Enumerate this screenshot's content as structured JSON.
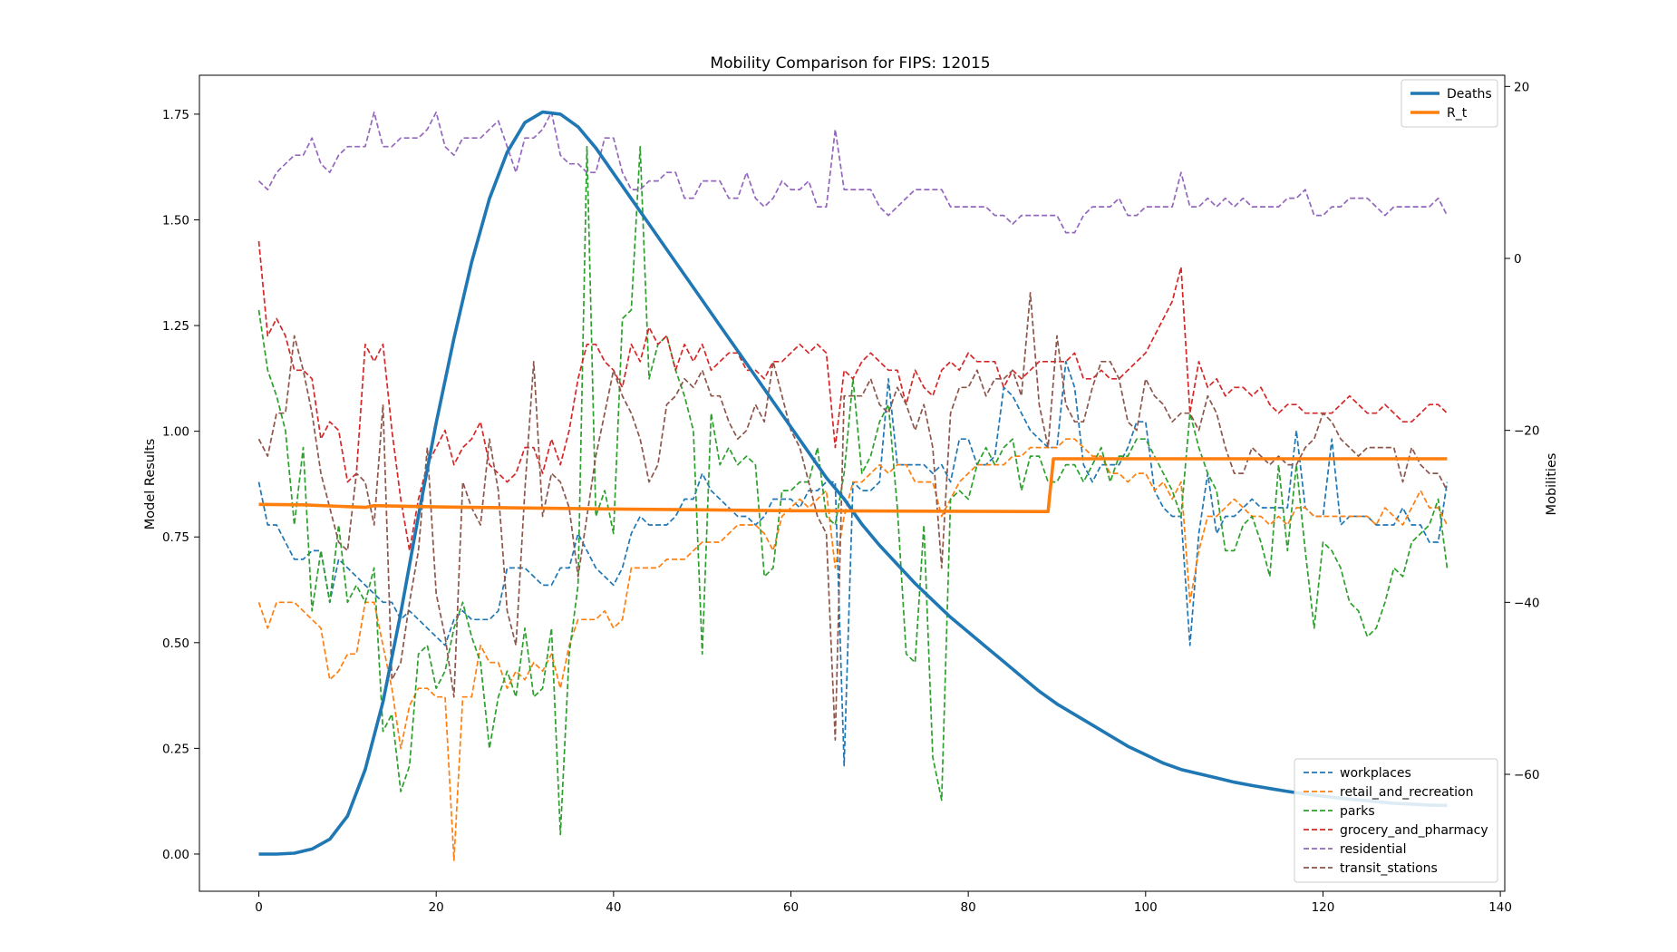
{
  "chart_data": {
    "type": "line",
    "title": "Mobility Comparison for FIPS: 12015",
    "xlabel": "",
    "xlim": [
      -6.7,
      140.5
    ],
    "x_ticks": [
      0,
      20,
      40,
      60,
      80,
      100,
      120,
      140
    ],
    "left_axis": {
      "label": "Model Results",
      "ylim": [
        -0.088,
        1.842
      ],
      "ticks": [
        "0.00",
        "0.25",
        "0.50",
        "0.75",
        "1.00",
        "1.25",
        "1.50",
        "1.75"
      ]
    },
    "right_axis": {
      "label": "Mobilities",
      "ylim": [
        -73.6,
        21.3
      ],
      "ticks": [
        "−60",
        "−40",
        "−20",
        "0",
        "20"
      ]
    },
    "legend_left_axis": {
      "placement": "upper-right",
      "entries": [
        "Deaths",
        "R_t"
      ]
    },
    "legend_right_axis": {
      "placement": "lower-right",
      "entries": [
        "workplaces",
        "retail_and_recreation",
        "parks",
        "grocery_and_pharmacy",
        "residential",
        "transit_stations"
      ]
    },
    "model_series": [
      {
        "name": "Deaths",
        "axis": "left",
        "color": "#1f77b4",
        "style": "solid",
        "points": [
          [
            0,
            0
          ],
          [
            2,
            0
          ],
          [
            4,
            0.002
          ],
          [
            6,
            0.012
          ],
          [
            8,
            0.035
          ],
          [
            10,
            0.09
          ],
          [
            12,
            0.2
          ],
          [
            14,
            0.36
          ],
          [
            16,
            0.57
          ],
          [
            18,
            0.8
          ],
          [
            20,
            1.02
          ],
          [
            22,
            1.22
          ],
          [
            24,
            1.4
          ],
          [
            26,
            1.55
          ],
          [
            28,
            1.66
          ],
          [
            30,
            1.73
          ],
          [
            32,
            1.755
          ],
          [
            34,
            1.75
          ],
          [
            36,
            1.72
          ],
          [
            38,
            1.67
          ],
          [
            40,
            1.61
          ],
          [
            42,
            1.55
          ],
          [
            44,
            1.49
          ],
          [
            46,
            1.43
          ],
          [
            48,
            1.37
          ],
          [
            50,
            1.31
          ],
          [
            52,
            1.25
          ],
          [
            54,
            1.19
          ],
          [
            56,
            1.13
          ],
          [
            58,
            1.07
          ],
          [
            60,
            1.01
          ],
          [
            62,
            0.95
          ],
          [
            64,
            0.89
          ],
          [
            66,
            0.84
          ],
          [
            68,
            0.78
          ],
          [
            70,
            0.73
          ],
          [
            72,
            0.685
          ],
          [
            74,
            0.64
          ],
          [
            76,
            0.6
          ],
          [
            78,
            0.56
          ],
          [
            80,
            0.525
          ],
          [
            82,
            0.49
          ],
          [
            84,
            0.455
          ],
          [
            86,
            0.42
          ],
          [
            88,
            0.385
          ],
          [
            90,
            0.355
          ],
          [
            92,
            0.33
          ],
          [
            94,
            0.305
          ],
          [
            96,
            0.28
          ],
          [
            98,
            0.255
          ],
          [
            100,
            0.235
          ],
          [
            102,
            0.215
          ],
          [
            104,
            0.2
          ],
          [
            106,
            0.19
          ],
          [
            108,
            0.18
          ],
          [
            110,
            0.17
          ],
          [
            112,
            0.162
          ],
          [
            114,
            0.155
          ],
          [
            116,
            0.148
          ],
          [
            118,
            0.142
          ],
          [
            120,
            0.137
          ],
          [
            122,
            0.132
          ],
          [
            124,
            0.128
          ],
          [
            126,
            0.124
          ],
          [
            128,
            0.12
          ],
          [
            130,
            0.118
          ],
          [
            132,
            0.116
          ],
          [
            134,
            0.115
          ]
        ]
      },
      {
        "name": "R_t",
        "axis": "left",
        "color": "#ff7f0e",
        "style": "solid",
        "points": [
          [
            0,
            0.827
          ],
          [
            5,
            0.826
          ],
          [
            12,
            0.82
          ],
          [
            13,
            0.824
          ],
          [
            20,
            0.821
          ],
          [
            40,
            0.816
          ],
          [
            60,
            0.812
          ],
          [
            75,
            0.811
          ],
          [
            89,
            0.81
          ],
          [
            89.6,
            0.935
          ],
          [
            134,
            0.935
          ]
        ]
      }
    ],
    "mobility_series": [
      {
        "name": "workplaces",
        "axis": "right",
        "color": "#1f77b4",
        "style": "dashed",
        "values": [
          -26,
          -31,
          -31,
          -33,
          -35,
          -35,
          -34,
          -34,
          -40,
          -35,
          -36,
          -37,
          -38,
          -39,
          -40,
          -40,
          -42,
          -41,
          -42,
          -43,
          -44,
          -45,
          -42,
          -41,
          -42,
          -42,
          -42,
          -41,
          -36,
          -36,
          -36,
          -37,
          -38,
          -38,
          -36,
          -36,
          -32,
          -34,
          -36,
          -37,
          -38,
          -36,
          -32,
          -30,
          -31,
          -31,
          -31,
          -30,
          -28,
          -28,
          -25,
          -27,
          -28,
          -29,
          -30,
          -30,
          -31,
          -30,
          -28,
          -28,
          -28,
          -29,
          -27,
          -27,
          -26,
          -26,
          -59,
          -26,
          -27,
          -27,
          -26,
          -14,
          -24,
          -24,
          -24,
          -24,
          -25,
          -24,
          -26,
          -21,
          -21,
          -24,
          -24,
          -23,
          -15,
          -16,
          -18,
          -20,
          -21,
          -22,
          -22,
          -12,
          -15,
          -24,
          -26,
          -24,
          -24,
          -24,
          -22,
          -19,
          -19,
          -27,
          -29,
          -30,
          -30,
          -45,
          -32,
          -25,
          -32,
          -30,
          -30,
          -29,
          -28,
          -29,
          -29,
          -29,
          -29,
          -20,
          -29,
          -30,
          -30,
          -21,
          -31,
          -30,
          -30,
          -30,
          -31,
          -31,
          -31,
          -29,
          -31,
          -31,
          -33,
          -33,
          -26
        ]
      },
      {
        "name": "retail_and_recreation",
        "axis": "right",
        "color": "#ff7f0e",
        "style": "dashed",
        "values": [
          -40,
          -43,
          -40,
          -40,
          -40,
          -41,
          -42,
          -43,
          -49,
          -48,
          -46,
          -46,
          -40,
          -40,
          -45,
          -50,
          -57,
          -52,
          -50,
          -50,
          -51,
          -51,
          -70,
          -51,
          -51,
          -45,
          -47,
          -47,
          -50,
          -48,
          -49,
          -47,
          -48,
          -46,
          -50,
          -45,
          -42,
          -42,
          -42,
          -41,
          -43,
          -42,
          -36,
          -36,
          -36,
          -36,
          -35,
          -35,
          -35,
          -34,
          -33,
          -33,
          -33,
          -32,
          -31,
          -31,
          -31,
          -32,
          -34,
          -30,
          -29,
          -28,
          -29,
          -28,
          -27,
          -36,
          -30,
          -26,
          -26,
          -25,
          -24,
          -25,
          -24,
          -24,
          -26,
          -26,
          -26,
          -30,
          -28,
          -26,
          -25,
          -24,
          -24,
          -24,
          -24,
          -23,
          -23,
          -22,
          -22,
          -22,
          -22,
          -21,
          -21,
          -22,
          -23,
          -23,
          -25,
          -25,
          -26,
          -25,
          -25,
          -27,
          -26,
          -28,
          -26,
          -40,
          -34,
          -30,
          -30,
          -29,
          -28,
          -29,
          -30,
          -30,
          -31,
          -30,
          -31,
          -29,
          -29,
          -30,
          -30,
          -30,
          -30,
          -30,
          -30,
          -30,
          -31,
          -29,
          -30,
          -31,
          -29,
          -27,
          -29,
          -29,
          -31
        ]
      },
      {
        "name": "parks",
        "axis": "right",
        "color": "#2ca02c",
        "style": "dashed",
        "values": [
          -6,
          -13,
          -16,
          -20,
          -31,
          -22,
          -41,
          -34,
          -40,
          -31,
          -40,
          -38,
          -40,
          -36,
          -55,
          -53,
          -62,
          -59,
          -46,
          -45,
          -50,
          -48,
          -43,
          -40,
          -44,
          -47,
          -57,
          -51,
          -48,
          -51,
          -43,
          -51,
          -50,
          -43,
          -67,
          -46,
          -38,
          13,
          -30,
          -27,
          -32,
          -7,
          -6,
          13,
          -14,
          -10,
          -9,
          -13,
          -16,
          -20,
          -46,
          -18,
          -24,
          -22,
          -24,
          -23,
          -24,
          -37,
          -36,
          -27,
          -27,
          -26,
          -26,
          -22,
          -30,
          -31,
          -25,
          -14,
          -25,
          -23,
          -19,
          -17,
          -29,
          -46,
          -47,
          -31,
          -58,
          -63,
          -28,
          -27,
          -28,
          -24,
          -22,
          -24,
          -22,
          -21,
          -27,
          -23,
          -23,
          -26,
          -26,
          -24,
          -24,
          -26,
          -24,
          -22,
          -26,
          -23,
          -23,
          -21,
          -21,
          -23,
          -25,
          -27,
          -30,
          -18,
          -22,
          -25,
          -27,
          -34,
          -34,
          -31,
          -30,
          -33,
          -37,
          -24,
          -34,
          -24,
          -34,
          -43,
          -33,
          -34,
          -36,
          -40,
          -41,
          -44,
          -43,
          -40,
          -36,
          -37,
          -33,
          -32,
          -31,
          -28,
          -36
        ]
      },
      {
        "name": "grocery_and_pharmacy",
        "axis": "right",
        "color": "#d62728",
        "style": "dashed",
        "values": [
          2,
          -9,
          -7,
          -9,
          -13,
          -13,
          -14,
          -21,
          -19,
          -20,
          -26,
          -25,
          -10,
          -12,
          -10,
          -20,
          -28,
          -34,
          -28,
          -24,
          -22,
          -20,
          -24,
          -22,
          -21,
          -19,
          -24,
          -25,
          -26,
          -25,
          -22,
          -22,
          -25,
          -21,
          -24,
          -20,
          -14,
          -10,
          -10,
          -12,
          -13,
          -15,
          -10,
          -12,
          -8,
          -10,
          -9,
          -13,
          -10,
          -12,
          -10,
          -13,
          -12,
          -11,
          -11,
          -13,
          -13,
          -14,
          -12,
          -12,
          -11,
          -10,
          -11,
          -10,
          -11,
          -22,
          -13,
          -14,
          -12,
          -11,
          -12,
          -13,
          -13,
          -17,
          -13,
          -15,
          -16,
          -13,
          -12,
          -13,
          -11,
          -12,
          -12,
          -12,
          -15,
          -13,
          -14,
          -13,
          -12,
          -12,
          -12,
          -12,
          -11,
          -14,
          -14,
          -13,
          -14,
          -14,
          -13,
          -12,
          -11,
          -9,
          -7,
          -5,
          -1,
          -18,
          -12,
          -15,
          -14,
          -16,
          -15,
          -15,
          -16,
          -15,
          -17,
          -18,
          -17,
          -17,
          -18,
          -18,
          -18,
          -18,
          -17,
          -16,
          -17,
          -18,
          -18,
          -17,
          -18,
          -19,
          -19,
          -18,
          -17,
          -17,
          -18
        ]
      },
      {
        "name": "residential",
        "axis": "right",
        "color": "#9467bd",
        "style": "dashed",
        "values": [
          9,
          8,
          10,
          11,
          12,
          12,
          14,
          11,
          10,
          12,
          13,
          13,
          13,
          17,
          13,
          13,
          14,
          14,
          14,
          15,
          17,
          13,
          12,
          14,
          14,
          14,
          15,
          16,
          13,
          10,
          14,
          14,
          15,
          17,
          12,
          11,
          11,
          10,
          10,
          14,
          14,
          10,
          8,
          8,
          9,
          9,
          10,
          10,
          7,
          7,
          9,
          9,
          9,
          7,
          7,
          10,
          7,
          6,
          7,
          9,
          8,
          8,
          9,
          6,
          6,
          15,
          8,
          8,
          8,
          8,
          6,
          5,
          6,
          7,
          8,
          8,
          8,
          8,
          6,
          6,
          6,
          6,
          6,
          5,
          5,
          4,
          5,
          5,
          5,
          5,
          5,
          3,
          3,
          5,
          6,
          6,
          6,
          7,
          5,
          5,
          6,
          6,
          6,
          6,
          10,
          6,
          6,
          7,
          6,
          7,
          6,
          7,
          6,
          6,
          6,
          6,
          7,
          7,
          8,
          5,
          5,
          6,
          6,
          7,
          7,
          7,
          6,
          5,
          6,
          6,
          6,
          6,
          6,
          7,
          5
        ]
      },
      {
        "name": "transit_stations",
        "axis": "right",
        "color": "#8c564b",
        "style": "dashed",
        "values": [
          -21,
          -23,
          -18,
          -18,
          -9,
          -13,
          -18,
          -25,
          -29,
          -33,
          -34,
          -25,
          -26,
          -31,
          -17,
          -49,
          -47,
          -40,
          -34,
          -22,
          -39,
          -44,
          -51,
          -26,
          -29,
          -31,
          -21,
          -27,
          -41,
          -45,
          -27,
          -12,
          -30,
          -25,
          -26,
          -29,
          -37,
          -30,
          -23,
          -18,
          -13,
          -16,
          -18,
          -21,
          -26,
          -24,
          -17,
          -16,
          -14,
          -15,
          -13,
          -16,
          -16,
          -19,
          -21,
          -20,
          -17,
          -19,
          -12,
          -16,
          -20,
          -22,
          -26,
          -30,
          -32,
          -56,
          -16,
          -16,
          -16,
          -14,
          -17,
          -18,
          -15,
          -17,
          -20,
          -17,
          -22,
          -36,
          -18,
          -15,
          -15,
          -13,
          -16,
          -14,
          -14,
          -13,
          -16,
          -4,
          -17,
          -22,
          -9,
          -17,
          -19,
          -19,
          -15,
          -12,
          -12,
          -14,
          -19,
          -20,
          -14,
          -16,
          -17,
          -19,
          -18,
          -18,
          -20,
          -16,
          -18,
          -22,
          -25,
          -25,
          -22,
          -23,
          -24,
          -23,
          -24,
          -24,
          -22,
          -21,
          -18,
          -19,
          -21,
          -22,
          -23,
          -22,
          -22,
          -22,
          -22,
          -26,
          -22,
          -24,
          -25,
          -25,
          -27
        ]
      }
    ]
  }
}
